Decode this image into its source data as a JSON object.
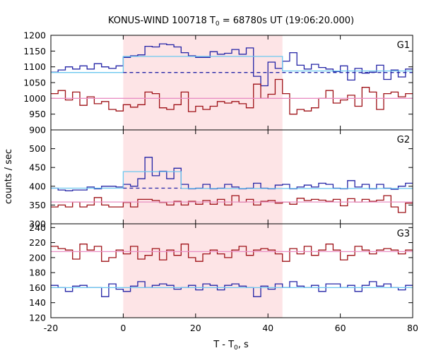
{
  "chart_data": {
    "type": "line",
    "title": {
      "prefix": "KONUS-WIND 100718 T",
      "sub": "0",
      "suffix": " = 68780s UT (19:06:20.000)"
    },
    "xlabel": {
      "prefix": "T - T",
      "sub": "0",
      "suffix": ", s"
    },
    "ylabel": "counts / sec",
    "xlim": [
      -20,
      80
    ],
    "x_ticks": [
      -20,
      0,
      20,
      40,
      60,
      80
    ],
    "x_tick_labels": [
      "-20",
      "0",
      "20",
      "40",
      "60",
      "80"
    ],
    "highlight_region": {
      "x": [
        0,
        44
      ],
      "color": "#fde4e6"
    },
    "colors": {
      "blue": "#2323a6",
      "red": "#9e1016",
      "fit_blue": "#6cc8f0",
      "fit_red": "#e98fc4"
    },
    "panels": [
      {
        "label": "G1",
        "ylim": [
          900,
          1200
        ],
        "y_ticks": [
          900,
          950,
          1000,
          1050,
          1100,
          1150,
          1200
        ],
        "y_tick_labels": [
          "900",
          "950",
          "1000",
          "1050",
          "1100",
          "1150",
          "1200"
        ],
        "series": [
          {
            "color": "blue",
            "x_start": -20,
            "bin": 2,
            "values": [
              1083,
              1090,
              1100,
              1093,
              1103,
              1093,
              1110,
              1100,
              1095,
              1103,
              1130,
              1135,
              1138,
              1165,
              1163,
              1173,
              1170,
              1163,
              1145,
              1135,
              1130,
              1130,
              1148,
              1140,
              1143,
              1155,
              1140,
              1160,
              1070,
              1040,
              1115,
              1095,
              1118,
              1145,
              1105,
              1093,
              1108,
              1098,
              1093,
              1085,
              1103,
              1058,
              1095,
              1080,
              1083,
              1105,
              1060,
              1090,
              1068,
              1093
            ]
          },
          {
            "color": "red",
            "x_start": -20,
            "bin": 2,
            "values": [
              1015,
              1025,
              995,
              1020,
              978,
              1005,
              983,
              990,
              965,
              960,
              980,
              972,
              980,
              1020,
              1015,
              970,
              965,
              980,
              1020,
              958,
              975,
              965,
              975,
              990,
              985,
              990,
              983,
              970,
              1045,
              1000,
              1013,
              1060,
              1015,
              950,
              965,
              960,
              970,
              1000,
              1025,
              985,
              995,
              1010,
              975,
              1035,
              1020,
              965,
              1015,
              1020,
              1005,
              1015
            ]
          },
          {
            "color": "fit_blue",
            "segments": [
              [
                -20,
                0,
                1082
              ],
              [
                0,
                44,
                1133
              ],
              [
                44,
                80,
                1087
              ]
            ]
          },
          {
            "color": "blue",
            "dashed": true,
            "segments": [
              [
                0,
                80,
                1082
              ]
            ]
          },
          {
            "color": "fit_red",
            "segments": [
              [
                -20,
                80,
                1000
              ]
            ]
          }
        ]
      },
      {
        "label": "G2",
        "ylim": [
          300,
          550
        ],
        "y_ticks": [
          300,
          350,
          400,
          450,
          500
        ],
        "y_tick_labels": [
          "300",
          "350",
          "400",
          "450",
          "500"
        ],
        "series": [
          {
            "color": "blue",
            "x_start": -20,
            "bin": 2,
            "values": [
              395,
              390,
              388,
              390,
              390,
              398,
              393,
              400,
              400,
              398,
              405,
              400,
              420,
              477,
              428,
              440,
              420,
              448,
              405,
              393,
              395,
              405,
              393,
              395,
              405,
              398,
              393,
              395,
              408,
              395,
              393,
              403,
              405,
              393,
              398,
              403,
              398,
              408,
              405,
              395,
              393,
              415,
              398,
              405,
              393,
              405,
              395,
              392,
              400,
              408
            ]
          },
          {
            "color": "red",
            "x_start": -20,
            "bin": 2,
            "values": [
              345,
              350,
              345,
              358,
              345,
              350,
              370,
              350,
              345,
              345,
              357,
              345,
              365,
              365,
              362,
              357,
              350,
              360,
              350,
              360,
              352,
              362,
              352,
              365,
              350,
              375,
              358,
              365,
              350,
              360,
              362,
              355,
              358,
              352,
              368,
              362,
              365,
              363,
              360,
              365,
              348,
              367,
              358,
              365,
              360,
              363,
              375,
              345,
              330,
              355
            ]
          },
          {
            "color": "fit_blue",
            "segments": [
              [
                -20,
                0,
                395
              ],
              [
                0,
                16,
                439
              ],
              [
                16,
                80,
                394
              ]
            ]
          },
          {
            "color": "blue",
            "dashed": true,
            "segments": [
              [
                0,
                16,
                395
              ]
            ]
          },
          {
            "color": "fit_red",
            "segments": [
              [
                -20,
                80,
                358
              ]
            ]
          }
        ]
      },
      {
        "label": "G3",
        "ylim": [
          120,
          245
        ],
        "y_ticks": [
          120,
          140,
          160,
          180,
          200,
          220,
          240
        ],
        "y_tick_labels": [
          "120",
          "140",
          "160",
          "180",
          "200",
          "220",
          "240"
        ],
        "series": [
          {
            "color": "blue",
            "x_start": -20,
            "bin": 2,
            "values": [
              163,
              160,
              155,
              162,
              163,
              160,
              160,
              148,
              165,
              158,
              155,
              162,
              168,
              160,
              163,
              165,
              163,
              158,
              160,
              163,
              157,
              165,
              163,
              157,
              163,
              165,
              162,
              160,
              148,
              162,
              158,
              165,
              160,
              168,
              162,
              160,
              163,
              155,
              165,
              165,
              160,
              163,
              155,
              163,
              168,
              162,
              165,
              160,
              157,
              163
            ]
          },
          {
            "color": "red",
            "x_start": -20,
            "bin": 2,
            "values": [
              215,
              212,
              210,
              198,
              218,
              210,
              215,
              195,
              200,
              210,
              205,
              215,
              198,
              203,
              212,
              197,
              210,
              203,
              218,
              200,
              195,
              205,
              210,
              205,
              200,
              210,
              215,
              203,
              210,
              212,
              210,
              205,
              195,
              212,
              205,
              215,
              203,
              210,
              218,
              210,
              197,
              203,
              215,
              210,
              205,
              210,
              212,
              210,
              205,
              210
            ]
          },
          {
            "color": "fit_blue",
            "segments": [
              [
                -20,
                80,
                160
              ]
            ]
          },
          {
            "color": "fit_red",
            "segments": [
              [
                -20,
                80,
                208
              ]
            ]
          }
        ]
      }
    ]
  }
}
